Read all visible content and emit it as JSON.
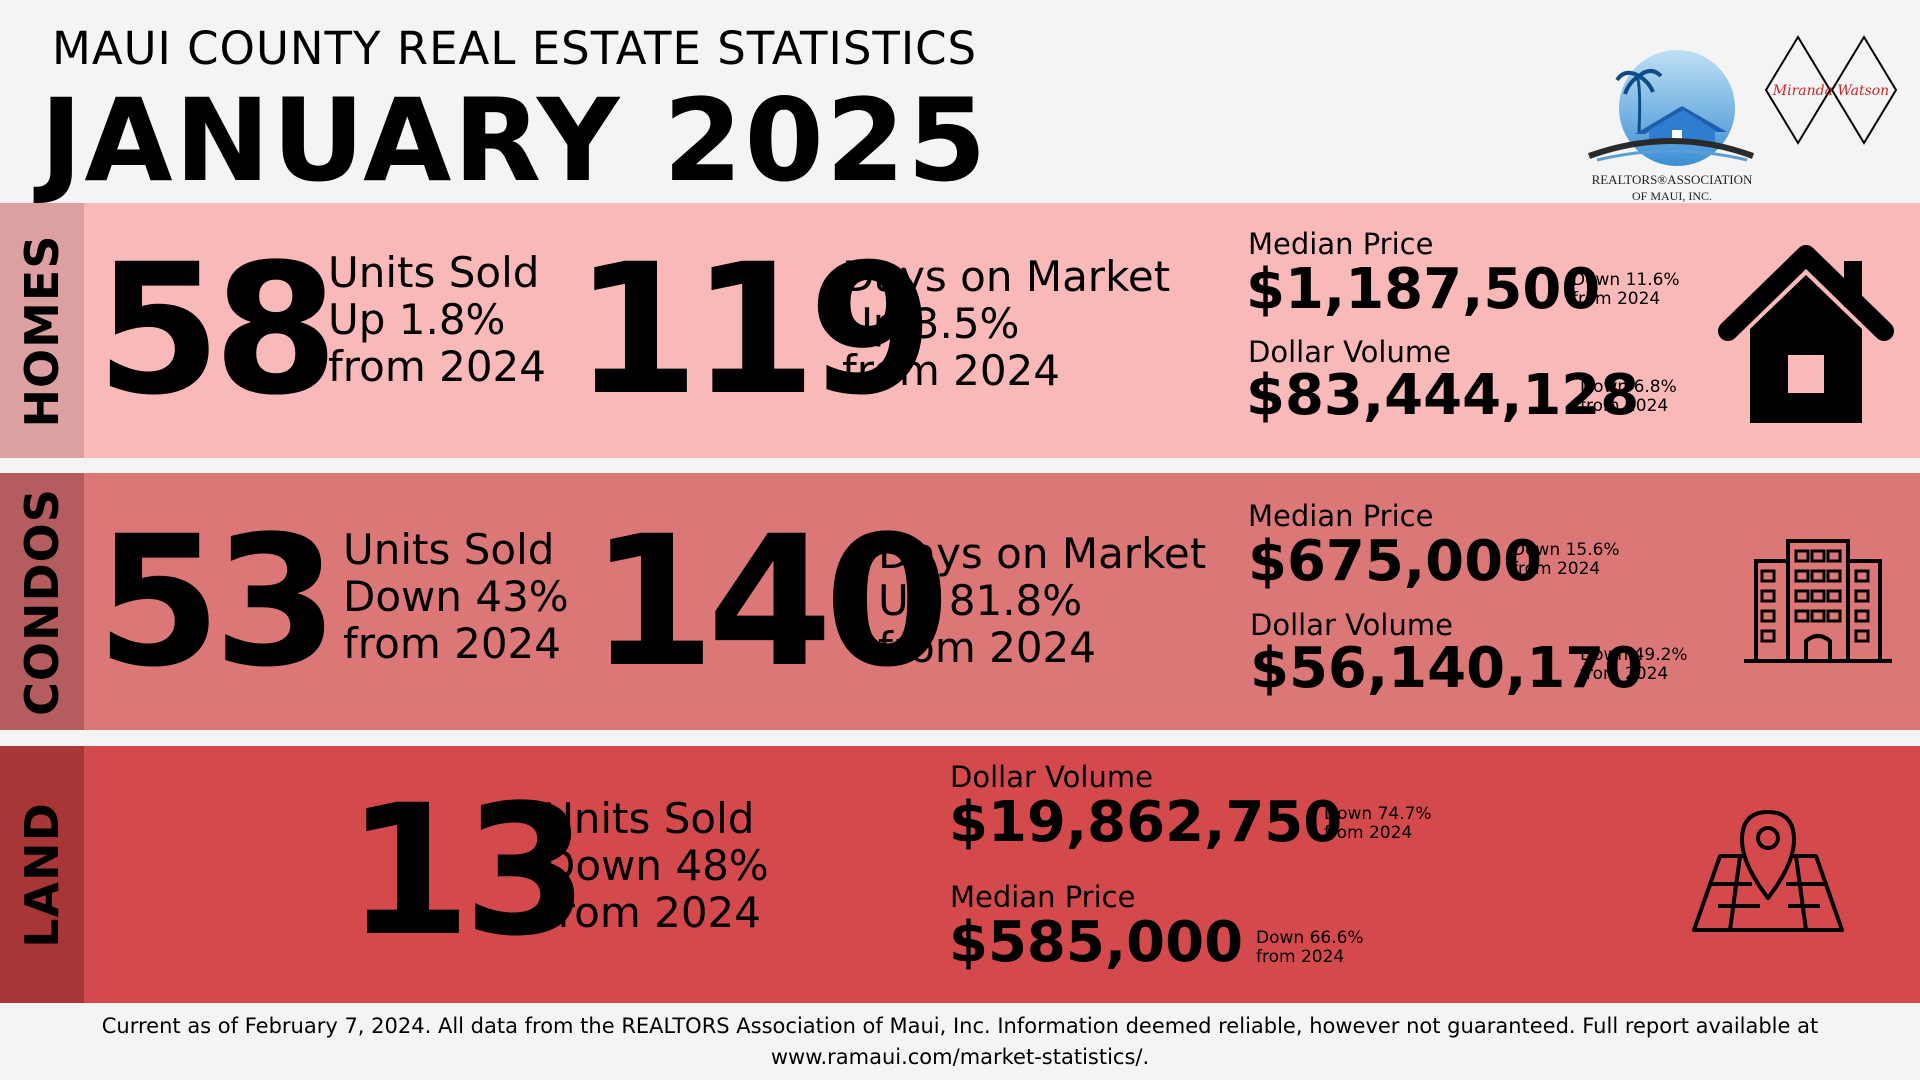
{
  "header": {
    "subtitle": "MAUI COUNTY REAL ESTATE STATISTICS",
    "title": "JANUARY 2025",
    "logo_text_line1": "REALTORS®ASSOCIATION",
    "logo_text_line2": "OF MAUI, INC.",
    "signature": "Miranda Watson"
  },
  "homes": {
    "label": "HOMES",
    "units": "58",
    "units_lines": [
      "Units Sold",
      "Up 1.8%",
      "from 2024"
    ],
    "days": "119",
    "days_lines": [
      "Days on Market",
      "Up 3.5%",
      "from 2024"
    ],
    "median_label": "Median Price",
    "median_value": "$1,187,500",
    "median_change": [
      "Down 11.6%",
      "from 2024"
    ],
    "volume_label": "Dollar Volume",
    "volume_value": "$83,444,128",
    "volume_change": [
      "Down 6.8%",
      "from 2024"
    ],
    "icon": "house-icon"
  },
  "condos": {
    "label": "CONDOS",
    "units": "53",
    "units_lines": [
      "Units Sold",
      "Down 43%",
      "from 2024"
    ],
    "days": "140",
    "days_lines": [
      "Days on Market",
      "Up 81.8%",
      "from 2024"
    ],
    "median_label": "Median Price",
    "median_value": "$675,000",
    "median_change": [
      "Down 15.6%",
      "from 2024"
    ],
    "volume_label": "Dollar Volume",
    "volume_value": "$56,140,170",
    "volume_change": [
      "Down 49.2%",
      "from 2024"
    ],
    "icon": "building-icon"
  },
  "land": {
    "label": "LAND",
    "units": "13",
    "units_lines": [
      "Units Sold",
      "Down 48%",
      "from 2024"
    ],
    "volume_label": "Dollar Volume",
    "volume_value": "$19,862,750",
    "volume_change": [
      "Down 74.7%",
      "from 2024"
    ],
    "median_label": "Median Price",
    "median_value": "$585,000",
    "median_change": [
      "Down 66.6%",
      "from 2024"
    ],
    "icon": "map-pin-icon"
  },
  "footer": {
    "line1": "Current as of February 7, 2024. All data from the REALTORS Association of Maui, Inc. Information deemed reliable, however not guaranteed. Full report available at",
    "line2": "www.ramaui.com/market-statistics/."
  }
}
